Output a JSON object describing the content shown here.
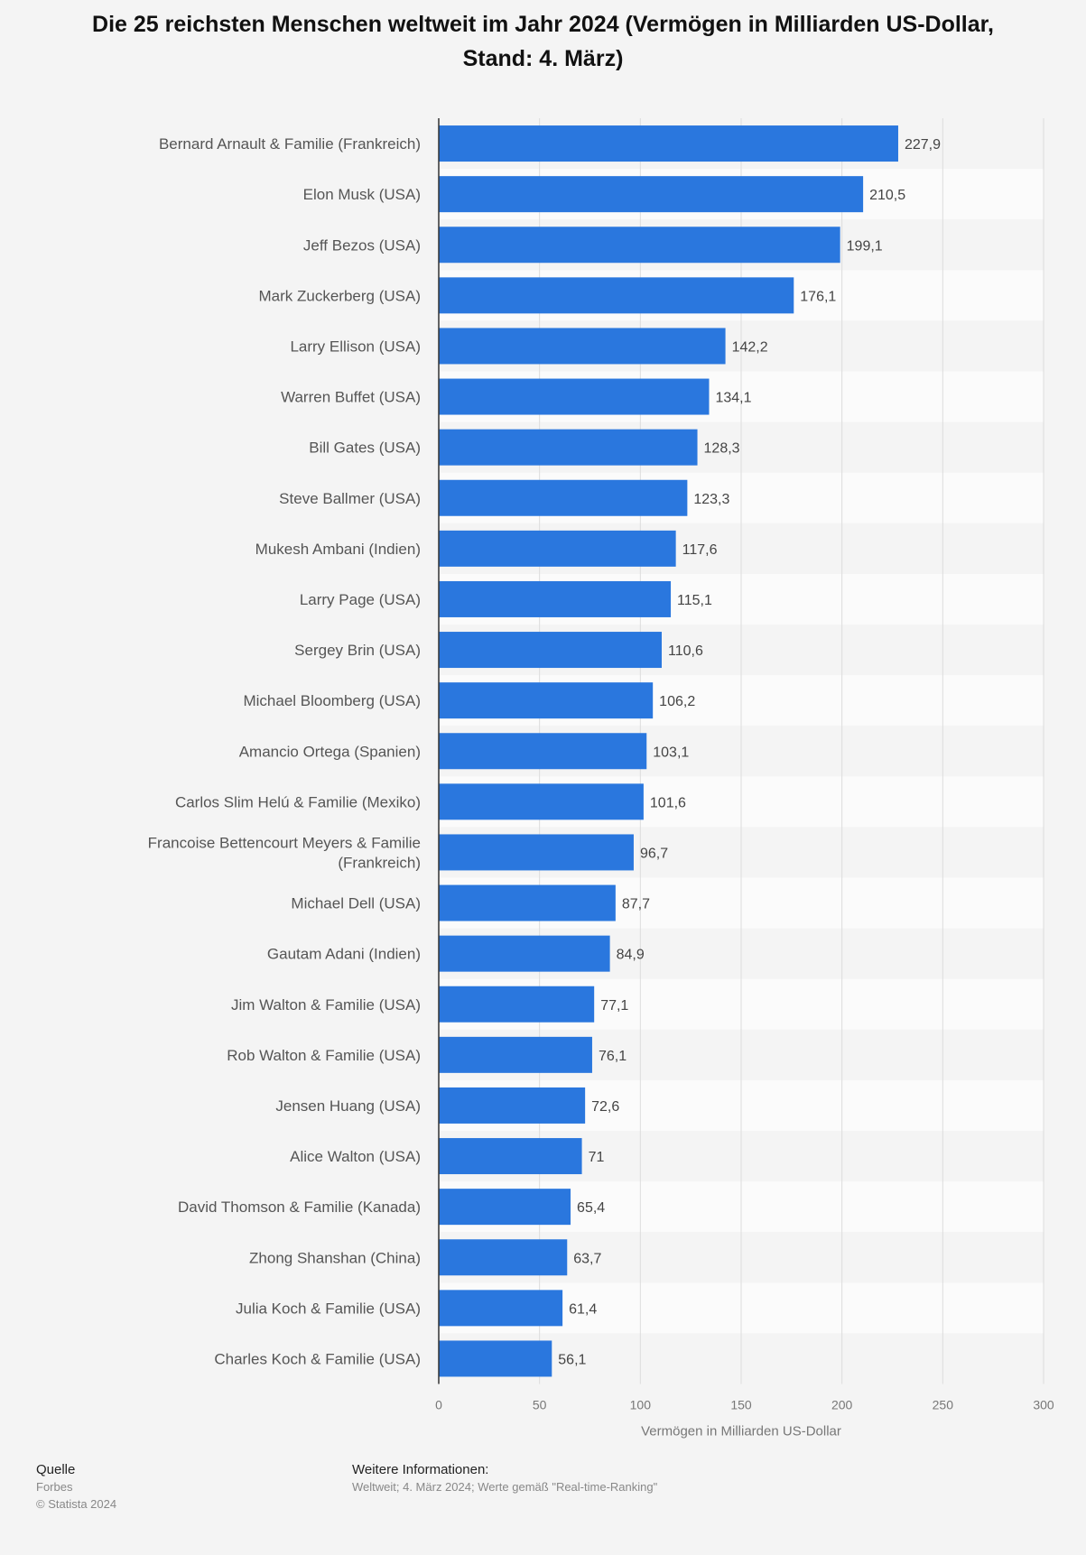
{
  "title_lines": [
    "Die 25 reichsten Menschen weltweit im Jahr 2024 (Vermögen in Milliarden US-Dollar,",
    "Stand: 4. März)"
  ],
  "chart_data": {
    "type": "bar",
    "orientation": "horizontal",
    "title": "Die 25 reichsten Menschen weltweit im Jahr 2024 (Vermögen in Milliarden US-Dollar, Stand: 4. März)",
    "xlabel": "Vermögen in Milliarden US-Dollar",
    "ylabel": "",
    "xlim": [
      0,
      300
    ],
    "xticks": [
      0,
      50,
      100,
      150,
      200,
      250,
      300
    ],
    "grid": true,
    "bar_color": "#2a77de",
    "categories": [
      [
        "Bernard Arnault & Familie (Frankreich)"
      ],
      [
        "Elon Musk (USA)"
      ],
      [
        "Jeff Bezos (USA)"
      ],
      [
        "Mark Zuckerberg (USA)"
      ],
      [
        "Larry Ellison (USA)"
      ],
      [
        "Warren Buffet (USA)"
      ],
      [
        "Bill Gates (USA)"
      ],
      [
        "Steve Ballmer (USA)"
      ],
      [
        "Mukesh Ambani (Indien)"
      ],
      [
        "Larry Page (USA)"
      ],
      [
        "Sergey Brin (USA)"
      ],
      [
        "Michael Bloomberg (USA)"
      ],
      [
        "Amancio Ortega (Spanien)"
      ],
      [
        "Carlos Slim Helú & Familie (Mexiko)"
      ],
      [
        "Francoise Bettencourt Meyers & Familie",
        "(Frankreich)"
      ],
      [
        "Michael Dell (USA)"
      ],
      [
        "Gautam Adani (Indien)"
      ],
      [
        "Jim Walton & Familie (USA)"
      ],
      [
        "Rob Walton & Familie (USA)"
      ],
      [
        "Jensen Huang (USA)"
      ],
      [
        "Alice Walton (USA)"
      ],
      [
        "David Thomson & Familie (Kanada)"
      ],
      [
        "Zhong Shanshan (China)"
      ],
      [
        "Julia Koch & Familie (USA)"
      ],
      [
        "Charles Koch & Familie (USA)"
      ]
    ],
    "values": [
      227.9,
      210.5,
      199.1,
      176.1,
      142.2,
      134.1,
      128.3,
      123.3,
      117.6,
      115.1,
      110.6,
      106.2,
      103.1,
      101.6,
      96.7,
      87.7,
      84.9,
      77.1,
      76.1,
      72.6,
      71,
      65.4,
      63.7,
      61.4,
      56.1
    ],
    "value_labels": [
      "227,9",
      "210,5",
      "199,1",
      "176,1",
      "142,2",
      "134,1",
      "128,3",
      "123,3",
      "117,6",
      "115,1",
      "110,6",
      "106,2",
      "103,1",
      "101,6",
      "96,7",
      "87,7",
      "84,9",
      "77,1",
      "76,1",
      "72,6",
      "71",
      "65,4",
      "63,7",
      "61,4",
      "56,1"
    ]
  },
  "footer": {
    "source_heading": "Quelle",
    "source_name": "Forbes",
    "copyright": "© Statista 2024",
    "info_heading": "Weitere Informationen:",
    "info_text": "Weltweit; 4. März 2024; Werte gemäß \"Real-time-Ranking\""
  }
}
